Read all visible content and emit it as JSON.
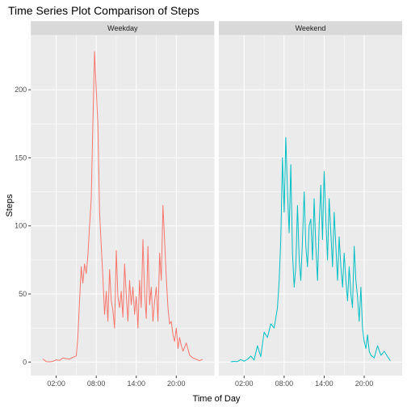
{
  "chart_data": {
    "type": "line",
    "title": "Time Series Plot Comparison of Steps",
    "xlabel": "Time of Day",
    "ylabel": "Steps",
    "x_unit": "hours",
    "xlim": [
      -1.8,
      25.7
    ],
    "ylim": [
      -10,
      240
    ],
    "x_ticks": [
      {
        "value": 2,
        "label": "02:00"
      },
      {
        "value": 8,
        "label": "08:00"
      },
      {
        "value": 14,
        "label": "14:00"
      },
      {
        "value": 20,
        "label": "20:00"
      }
    ],
    "y_ticks": [
      {
        "value": 0,
        "label": "0"
      },
      {
        "value": 50,
        "label": "50"
      },
      {
        "value": 100,
        "label": "100"
      },
      {
        "value": 150,
        "label": "150"
      },
      {
        "value": 200,
        "label": "200"
      }
    ],
    "grid": true,
    "legend": "none",
    "panels": [
      {
        "strip": "Weekday",
        "color": "#F8766D",
        "points": [
          [
            0,
            2.3
          ],
          [
            0.5,
            0.4
          ],
          [
            1,
            0.2
          ],
          [
            1.5,
            0.5
          ],
          [
            2,
            1.6
          ],
          [
            2.5,
            1.2
          ],
          [
            3,
            3
          ],
          [
            3.5,
            2.5
          ],
          [
            4,
            2.1
          ],
          [
            4.5,
            3.5
          ],
          [
            5,
            4.5
          ],
          [
            5.25,
            18
          ],
          [
            5.5,
            45
          ],
          [
            5.75,
            70
          ],
          [
            6,
            58
          ],
          [
            6.25,
            72
          ],
          [
            6.5,
            65
          ],
          [
            6.75,
            78
          ],
          [
            7,
            100
          ],
          [
            7.25,
            120
          ],
          [
            7.5,
            175
          ],
          [
            7.75,
            228
          ],
          [
            8,
            200
          ],
          [
            8.25,
            175
          ],
          [
            8.5,
            110
          ],
          [
            8.75,
            85
          ],
          [
            9,
            62
          ],
          [
            9.25,
            35
          ],
          [
            9.5,
            52
          ],
          [
            9.75,
            30
          ],
          [
            10,
            68
          ],
          [
            10.25,
            45
          ],
          [
            10.5,
            38
          ],
          [
            10.75,
            25
          ],
          [
            11,
            82
          ],
          [
            11.25,
            48
          ],
          [
            11.5,
            40
          ],
          [
            11.75,
            52
          ],
          [
            12,
            33
          ],
          [
            12.25,
            72
          ],
          [
            12.5,
            50
          ],
          [
            12.75,
            30
          ],
          [
            13,
            60
          ],
          [
            13.25,
            42
          ],
          [
            13.5,
            55
          ],
          [
            13.75,
            35
          ],
          [
            14,
            48
          ],
          [
            14.25,
            25
          ],
          [
            14.5,
            60
          ],
          [
            14.75,
            40
          ],
          [
            15,
            90
          ],
          [
            15.25,
            50
          ],
          [
            15.5,
            32
          ],
          [
            15.75,
            85
          ],
          [
            16,
            42
          ],
          [
            16.25,
            55
          ],
          [
            16.5,
            30
          ],
          [
            16.75,
            45
          ],
          [
            17,
            55
          ],
          [
            17.25,
            30
          ],
          [
            17.5,
            80
          ],
          [
            17.75,
            60
          ],
          [
            18,
            115
          ],
          [
            18.25,
            90
          ],
          [
            18.5,
            62
          ],
          [
            18.75,
            40
          ],
          [
            19,
            28
          ],
          [
            19.25,
            30
          ],
          [
            19.5,
            20
          ],
          [
            19.75,
            15
          ],
          [
            20,
            25
          ],
          [
            20.25,
            10
          ],
          [
            20.5,
            18
          ],
          [
            20.75,
            12
          ],
          [
            21,
            8
          ],
          [
            21.5,
            14
          ],
          [
            22,
            5
          ],
          [
            22.5,
            3
          ],
          [
            23,
            2
          ],
          [
            23.5,
            1
          ],
          [
            23.92,
            2
          ]
        ]
      },
      {
        "strip": "Weekend",
        "color": "#00BFC4",
        "points": [
          [
            0,
            0.2
          ],
          [
            0.5,
            0.5
          ],
          [
            1,
            0.3
          ],
          [
            1.5,
            1.8
          ],
          [
            2,
            0.6
          ],
          [
            2.5,
            2
          ],
          [
            3,
            4.5
          ],
          [
            3.5,
            1.5
          ],
          [
            4,
            12
          ],
          [
            4.5,
            4
          ],
          [
            5,
            22
          ],
          [
            5.5,
            18
          ],
          [
            6,
            28
          ],
          [
            6.5,
            25
          ],
          [
            7,
            40
          ],
          [
            7.25,
            60
          ],
          [
            7.5,
            90
          ],
          [
            7.75,
            150
          ],
          [
            8,
            110
          ],
          [
            8.25,
            165
          ],
          [
            8.5,
            125
          ],
          [
            8.75,
            95
          ],
          [
            9,
            145
          ],
          [
            9.25,
            80
          ],
          [
            9.5,
            55
          ],
          [
            9.75,
            70
          ],
          [
            10,
            115
          ],
          [
            10.25,
            75
          ],
          [
            10.5,
            60
          ],
          [
            10.75,
            90
          ],
          [
            11,
            125
          ],
          [
            11.25,
            85
          ],
          [
            11.5,
            70
          ],
          [
            11.75,
            100
          ],
          [
            12,
            105
          ],
          [
            12.25,
            75
          ],
          [
            12.5,
            120
          ],
          [
            12.75,
            85
          ],
          [
            13,
            60
          ],
          [
            13.25,
            100
          ],
          [
            13.5,
            130
          ],
          [
            13.75,
            90
          ],
          [
            14,
            140
          ],
          [
            14.25,
            105
          ],
          [
            14.5,
            75
          ],
          [
            14.75,
            120
          ],
          [
            15,
            95
          ],
          [
            15.25,
            70
          ],
          [
            15.5,
            110
          ],
          [
            15.75,
            85
          ],
          [
            16,
            60
          ],
          [
            16.25,
            92
          ],
          [
            16.5,
            70
          ],
          [
            16.75,
            55
          ],
          [
            17,
            80
          ],
          [
            17.25,
            60
          ],
          [
            17.5,
            45
          ],
          [
            17.75,
            70
          ],
          [
            18,
            50
          ],
          [
            18.25,
            40
          ],
          [
            18.5,
            85
          ],
          [
            18.75,
            60
          ],
          [
            19,
            48
          ],
          [
            19.25,
            30
          ],
          [
            19.5,
            55
          ],
          [
            19.75,
            25
          ],
          [
            20,
            15
          ],
          [
            20.25,
            10
          ],
          [
            20.5,
            20
          ],
          [
            20.75,
            8
          ],
          [
            21,
            5
          ],
          [
            21.5,
            3
          ],
          [
            22,
            12
          ],
          [
            22.5,
            5
          ],
          [
            23,
            8
          ],
          [
            23.5,
            4
          ],
          [
            23.92,
            1
          ]
        ]
      }
    ]
  }
}
